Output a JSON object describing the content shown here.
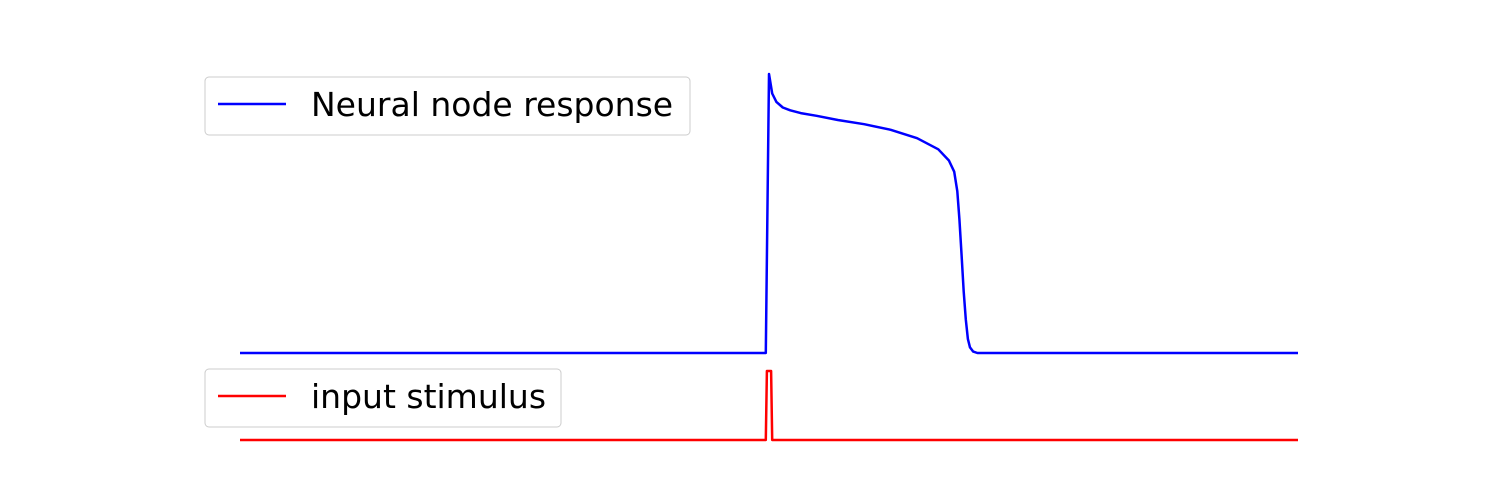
{
  "chart_data": [
    {
      "type": "line",
      "title": "",
      "xlabel": "",
      "ylabel": "",
      "axes_visible": false,
      "grid": false,
      "legend": {
        "placement": "top-left",
        "entries": [
          "Neural node response"
        ]
      },
      "xlim": [
        0,
        1
      ],
      "ylim": [
        0,
        1
      ],
      "series": [
        {
          "name": "Neural node response",
          "color": "#0000ff",
          "x": [
            0,
            0.497,
            0.5,
            0.503,
            0.507,
            0.513,
            0.52,
            0.53,
            0.545,
            0.565,
            0.59,
            0.615,
            0.64,
            0.66,
            0.67,
            0.675,
            0.678,
            0.68,
            0.682,
            0.684,
            0.686,
            0.688,
            0.69,
            0.693,
            0.697,
            0.705,
            0.72,
            1
          ],
          "y": [
            0,
            0,
            1,
            0.93,
            0.9,
            0.88,
            0.87,
            0.86,
            0.85,
            0.835,
            0.82,
            0.8,
            0.77,
            0.73,
            0.69,
            0.65,
            0.58,
            0.48,
            0.35,
            0.22,
            0.12,
            0.05,
            0.02,
            0.005,
            0,
            0,
            0,
            0
          ]
        }
      ]
    },
    {
      "type": "line",
      "title": "",
      "xlabel": "",
      "ylabel": "",
      "axes_visible": false,
      "grid": false,
      "legend": {
        "placement": "top-left",
        "entries": [
          "input stimulus"
        ]
      },
      "xlim": [
        0,
        1
      ],
      "ylim": [
        0,
        1
      ],
      "series": [
        {
          "name": "input stimulus",
          "color": "#ff0000",
          "x": [
            0,
            0.497,
            0.498,
            0.502,
            0.503,
            1
          ],
          "y": [
            0,
            0,
            1,
            1,
            0,
            0
          ]
        }
      ]
    }
  ]
}
